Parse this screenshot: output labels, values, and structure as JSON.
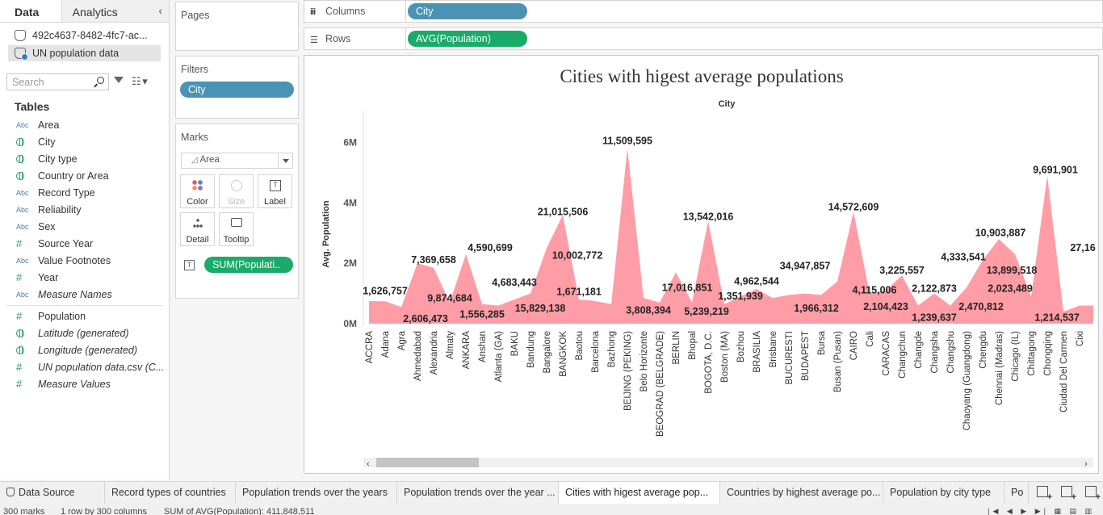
{
  "data_pane": {
    "tabs": [
      "Data",
      "Analytics"
    ],
    "sources": [
      "492c4637-8482-4fc7-ac...",
      "UN population data"
    ],
    "search_placeholder": "Search",
    "tables_label": "Tables",
    "fields": [
      {
        "type": "Abc",
        "name": "Area",
        "italic": false
      },
      {
        "type": "geo",
        "name": "City",
        "italic": false
      },
      {
        "type": "geo",
        "name": "City type",
        "italic": false
      },
      {
        "type": "geo",
        "name": "Country or Area",
        "italic": false
      },
      {
        "type": "Abc",
        "name": "Record Type",
        "italic": false
      },
      {
        "type": "Abc",
        "name": "Reliability",
        "italic": false
      },
      {
        "type": "Abc",
        "name": "Sex",
        "italic": false
      },
      {
        "type": "#",
        "name": "Source Year",
        "italic": false
      },
      {
        "type": "Abc",
        "name": "Value Footnotes",
        "italic": false
      },
      {
        "type": "#",
        "name": "Year",
        "italic": false
      },
      {
        "type": "Abc",
        "name": "Measure Names",
        "italic": true
      }
    ],
    "measures": [
      {
        "type": "#",
        "name": "Population",
        "italic": false
      },
      {
        "type": "geo",
        "name": "Latitude (generated)",
        "italic": true
      },
      {
        "type": "geo",
        "name": "Longitude (generated)",
        "italic": true
      },
      {
        "type": "#",
        "name": "UN population data.csv (C...",
        "italic": true
      },
      {
        "type": "#",
        "name": "Measure Values",
        "italic": true
      }
    ]
  },
  "cards": {
    "pages_label": "Pages",
    "filters_label": "Filters",
    "filter_pill": "City",
    "marks_label": "Marks",
    "mark_type": "Area",
    "mark_buttons": [
      "Color",
      "Size",
      "Label",
      "Detail",
      "Tooltip"
    ],
    "mark_pill": "SUM(Populati.."
  },
  "shelves": {
    "columns_label": "Columns",
    "columns_pill": "City",
    "rows_label": "Rows",
    "rows_pill": "AVG(Population)"
  },
  "chart_data": {
    "type": "area",
    "title": "Cities with higest average populations",
    "xlabel": "City",
    "ylabel": "Avg. Population",
    "ylim": [
      0,
      7000000
    ],
    "y_ticks": [
      "0M",
      "2M",
      "4M",
      "6M"
    ],
    "area_color": "#ff9da7",
    "categories": [
      "ACCRA",
      "Adana",
      "Agra",
      "Ahmedabad",
      "Alexandria",
      "Almaty",
      "ANKARA",
      "Anshan",
      "Atlanta (GA)",
      "BAKU",
      "Bandung",
      "Bangalore",
      "BANGKOK",
      "Baotou",
      "Barcelona",
      "Bazhong",
      "BEIJING (PEKING)",
      "Belo Horizonte",
      "BEOGRAD (BELGRADE)",
      "BERLIN",
      "Bhopal",
      "BOGOTA, D.C.",
      "Boston (MA)",
      "Bozhou",
      "BRASILIA",
      "Brisbane",
      "BUCURESTI",
      "BUDAPEST",
      "Bursa",
      "Busan (Pusan)",
      "CAIRO",
      "Cali",
      "CARACAS",
      "Changchun",
      "Changde",
      "Changsha",
      "Changshu",
      "Chaoyang (Guangdong)",
      "Chengdu",
      "Chennai (Madras)",
      "Chicago (IL)",
      "Chittagong",
      "Chongqing",
      "Ciudad Del Carmen",
      "Cixi"
    ],
    "values": [
      750000,
      740000,
      550000,
      2000000,
      1850000,
      700000,
      2300000,
      650000,
      600000,
      800000,
      1000000,
      2500000,
      3600000,
      800000,
      750000,
      650000,
      5800000,
      850000,
      700000,
      1700000,
      700000,
      3400000,
      650000,
      900000,
      1150000,
      850000,
      950000,
      1000000,
      950000,
      1400000,
      3700000,
      1000000,
      1100000,
      1600000,
      600000,
      1000000,
      600000,
      1200000,
      2100000,
      2800000,
      2300000,
      900000,
      4900000,
      400000,
      600000
    ],
    "labels": [
      {
        "text": "1,626,757",
        "x": 1,
        "y": 980000
      },
      {
        "text": "7,369,658",
        "x": 4,
        "y": 2000000
      },
      {
        "text": "2,606,473",
        "x": 3.5,
        "y": 50000
      },
      {
        "text": "9,874,684",
        "x": 5,
        "y": 730000
      },
      {
        "text": "4,590,699",
        "x": 7.5,
        "y": 2400000
      },
      {
        "text": "1,556,285",
        "x": 7,
        "y": 200000
      },
      {
        "text": "4,683,443",
        "x": 9,
        "y": 1260000
      },
      {
        "text": "15,829,138",
        "x": 10.6,
        "y": 400000
      },
      {
        "text": "21,015,506",
        "x": 12,
        "y": 3600000
      },
      {
        "text": "10,002,772",
        "x": 12.9,
        "y": 2150000
      },
      {
        "text": "1,671,181",
        "x": 13,
        "y": 950000
      },
      {
        "text": "11,509,595",
        "x": 16,
        "y": 5950000
      },
      {
        "text": "3,808,394",
        "x": 17.3,
        "y": 330000
      },
      {
        "text": "17,016,851",
        "x": 19.7,
        "y": 1080000
      },
      {
        "text": "13,542,016",
        "x": 21,
        "y": 3430000
      },
      {
        "text": "5,239,219",
        "x": 20.9,
        "y": 300000
      },
      {
        "text": "1,351,939",
        "x": 23,
        "y": 800000
      },
      {
        "text": "4,962,544",
        "x": 24,
        "y": 1300000
      },
      {
        "text": "34,947,857",
        "x": 27,
        "y": 1800000
      },
      {
        "text": "1,966,312",
        "x": 27.7,
        "y": 400000
      },
      {
        "text": "14,572,609",
        "x": 30,
        "y": 3750000
      },
      {
        "text": "4,115,006",
        "x": 31.3,
        "y": 1000000
      },
      {
        "text": "2,104,423",
        "x": 32,
        "y": 450000
      },
      {
        "text": "3,225,557",
        "x": 33,
        "y": 1660000
      },
      {
        "text": "2,122,873",
        "x": 35,
        "y": 1050000
      },
      {
        "text": "1,239,637",
        "x": 35,
        "y": 100000
      },
      {
        "text": "4,333,541",
        "x": 36.8,
        "y": 2100000
      },
      {
        "text": "2,470,812",
        "x": 37.9,
        "y": 450000
      },
      {
        "text": "10,903,887",
        "x": 39.1,
        "y": 2900000
      },
      {
        "text": "13,899,518",
        "x": 39.8,
        "y": 1650000
      },
      {
        "text": "2,023,489",
        "x": 39.7,
        "y": 1050000
      },
      {
        "text": "9,691,901",
        "x": 42.5,
        "y": 4980000
      },
      {
        "text": "1,214,537",
        "x": 42.6,
        "y": 100000
      },
      {
        "text": "27,16",
        "x": 44.2,
        "y": 2400000
      }
    ]
  },
  "sheet_tabs": {
    "data_source": "Data Source",
    "sheets": [
      "Record types of countries",
      "Population trends over the years",
      "Population trends over the year ...",
      "Cities with higest average pop...",
      "Countries by highest average po...",
      "Population by  city type",
      "Po"
    ],
    "active_index": 3
  },
  "status": {
    "marks": "300 marks",
    "rows_cols": "1 row by 300 columns",
    "sum": "SUM of AVG(Population): 411,848,511"
  }
}
